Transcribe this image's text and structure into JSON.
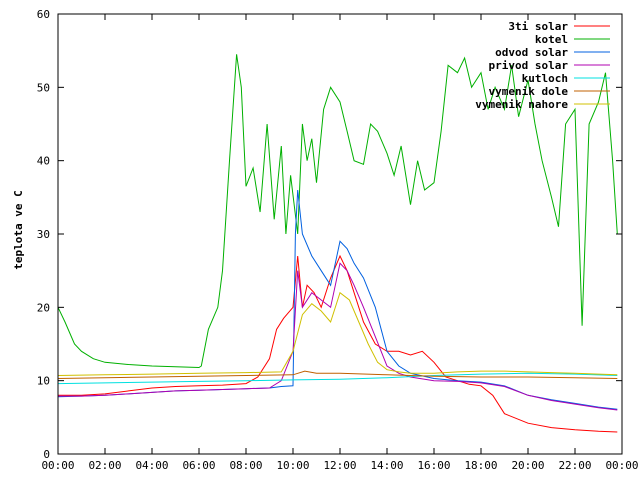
{
  "chart_data": {
    "type": "line",
    "title": "",
    "xlabel": "",
    "ylabel": "teplota ve C",
    "xlim": [
      0,
      24
    ],
    "ylim": [
      0,
      60
    ],
    "x_ticks": [
      "00:00",
      "02:00",
      "04:00",
      "06:00",
      "08:00",
      "10:00",
      "12:00",
      "14:00",
      "16:00",
      "18:00",
      "20:00",
      "22:00",
      "00:00"
    ],
    "y_ticks": [
      "0",
      "10",
      "20",
      "30",
      "40",
      "50",
      "60"
    ],
    "grid": false,
    "legend_position": "top-right",
    "series": [
      {
        "name": "3ti solar",
        "color": "#ff0000",
        "x": [
          0,
          1,
          2,
          3,
          4,
          5,
          6,
          7,
          8,
          8.5,
          9,
          9.3,
          9.6,
          10,
          10.2,
          10.4,
          10.6,
          10.9,
          11.2,
          11.6,
          12,
          12.3,
          12.6,
          13,
          13.5,
          14,
          14.5,
          15,
          15.5,
          16,
          16.5,
          17,
          17.5,
          18,
          18.5,
          19,
          20,
          21,
          22,
          23,
          23.8
        ],
        "y": [
          8,
          8,
          8.2,
          8.6,
          9,
          9.2,
          9.3,
          9.4,
          9.6,
          10.5,
          13,
          17,
          18.5,
          20,
          27,
          20,
          23,
          22,
          20,
          24,
          27,
          25,
          22,
          18,
          15,
          14,
          14,
          13.5,
          14,
          12.5,
          10.5,
          10,
          9.5,
          9.3,
          8,
          5.5,
          4.2,
          3.6,
          3.3,
          3.1,
          3
        ]
      },
      {
        "name": "kotel",
        "color": "#00b000",
        "x": [
          0,
          0.3,
          0.7,
          1,
          1.5,
          2,
          3,
          4,
          5,
          6,
          6.1,
          6.4,
          6.8,
          7,
          7.3,
          7.6,
          7.8,
          8,
          8.3,
          8.6,
          8.9,
          9.2,
          9.5,
          9.7,
          9.9,
          10.2,
          10.4,
          10.6,
          10.8,
          11,
          11.3,
          11.6,
          12,
          12.3,
          12.6,
          13,
          13.3,
          13.6,
          14,
          14.3,
          14.6,
          15,
          15.3,
          15.6,
          16,
          16.3,
          16.6,
          17,
          17.3,
          17.6,
          18,
          18.3,
          18.6,
          19,
          19.3,
          19.6,
          20,
          20.3,
          20.6,
          21,
          21.3,
          21.6,
          22,
          22.3,
          22.6,
          23,
          23.3,
          23.6,
          23.8
        ],
        "y": [
          20,
          18,
          15,
          14,
          13,
          12.5,
          12.2,
          12,
          11.9,
          11.8,
          12,
          17,
          20,
          25,
          40,
          54.5,
          50,
          36.5,
          39,
          33,
          45,
          32,
          42,
          30,
          38,
          30,
          45,
          40,
          43,
          37,
          47,
          50,
          48,
          44,
          40,
          39.5,
          45,
          44,
          41,
          38,
          42,
          34,
          40,
          36,
          37,
          44,
          53,
          52,
          54,
          50,
          52,
          47,
          50,
          47,
          53,
          46,
          51,
          45,
          40,
          35,
          31,
          45,
          47,
          17.5,
          45,
          48,
          52,
          40,
          30
        ]
      },
      {
        "name": "odvod solar",
        "color": "#0060e0",
        "x": [
          0,
          1,
          2,
          3,
          4,
          5,
          6,
          7,
          8,
          9,
          9.5,
          10,
          10.1,
          10.2,
          10.4,
          10.8,
          11.2,
          11.6,
          12,
          12.3,
          12.6,
          13,
          13.5,
          14,
          14.5,
          15,
          16,
          17,
          18,
          19,
          20,
          21,
          22,
          23,
          23.8
        ],
        "y": [
          7.8,
          7.9,
          8,
          8.2,
          8.4,
          8.6,
          8.7,
          8.8,
          8.9,
          9,
          9.2,
          9.3,
          30,
          36,
          30,
          27,
          25,
          23,
          29,
          28,
          26,
          24,
          20,
          14,
          12,
          11,
          10.3,
          10,
          9.8,
          9.3,
          8,
          7.4,
          6.9,
          6.4,
          6.1
        ]
      },
      {
        "name": "privod solar",
        "color": "#b000b0",
        "x": [
          0,
          1,
          2,
          3,
          4,
          5,
          6,
          7,
          8,
          9,
          9.5,
          10,
          10.2,
          10.4,
          10.8,
          11.2,
          11.6,
          12,
          12.3,
          12.6,
          13,
          13.5,
          14,
          14.5,
          15,
          16,
          17,
          18,
          19,
          20,
          21,
          22,
          23,
          23.8
        ],
        "y": [
          7.9,
          7.9,
          8,
          8.2,
          8.4,
          8.6,
          8.7,
          8.8,
          8.9,
          9,
          10,
          14,
          25,
          20,
          22,
          21,
          20,
          26,
          25,
          23,
          20,
          16,
          12,
          11,
          10.5,
          10,
          9.9,
          9.7,
          9.2,
          8,
          7.3,
          6.8,
          6.3,
          6
        ]
      },
      {
        "name": "kutloch",
        "color": "#00e0e0",
        "x": [
          0,
          2,
          4,
          6,
          8,
          10,
          12,
          14,
          16,
          18,
          20,
          22,
          23.8
        ],
        "y": [
          9.6,
          9.7,
          9.8,
          9.9,
          10,
          10.1,
          10.2,
          10.4,
          10.7,
          10.9,
          11,
          10.9,
          10.7
        ]
      },
      {
        "name": "vymenik dole",
        "color": "#c06000",
        "x": [
          0,
          2,
          4,
          6,
          8,
          10,
          10.5,
          11,
          12,
          14,
          16,
          18,
          20,
          22,
          23.8
        ],
        "y": [
          10.3,
          10.4,
          10.5,
          10.6,
          10.7,
          10.8,
          11.3,
          11,
          11,
          10.8,
          10.6,
          10.5,
          10.5,
          10.4,
          10.3
        ]
      },
      {
        "name": "vymenik nahore",
        "color": "#d0c000",
        "x": [
          0,
          2,
          4,
          6,
          8,
          9.5,
          10,
          10.4,
          10.8,
          11.2,
          11.6,
          12,
          12.4,
          12.8,
          13.2,
          13.6,
          14,
          14.5,
          15,
          16,
          17,
          18,
          19,
          20,
          21,
          22,
          23,
          23.8
        ],
        "y": [
          10.7,
          10.8,
          10.9,
          11,
          11.1,
          11.2,
          14,
          19,
          20.5,
          19.5,
          18,
          22,
          21,
          18,
          15,
          12.5,
          11.5,
          11.2,
          11,
          11,
          11.2,
          11.3,
          11.3,
          11.2,
          11.1,
          11,
          10.9,
          10.8
        ]
      }
    ]
  }
}
